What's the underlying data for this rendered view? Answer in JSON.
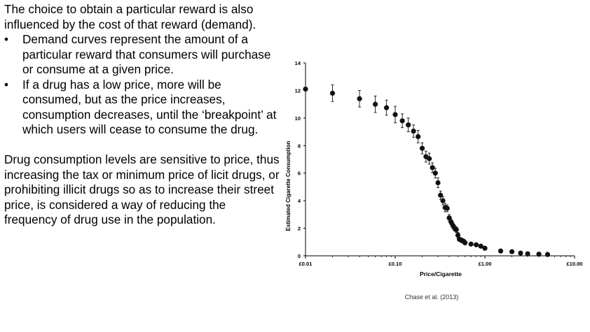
{
  "slide": {
    "intro": "The choice to obtain a particular reward is also influenced by the cost of that reward (demand).",
    "bullets": [
      "Demand curves represent the amount of a particular reward that consumers will purchase or consume at a given price.",
      "If a drug has a low price, more will be consumed, but as the price increases, consumption decreases, until the ‘breakpoint’ at which users will cease to consume the drug."
    ],
    "bullet_glyph": "•",
    "closing": "Drug consumption levels are sensitive to price, thus increasing the tax or minimum price of licit drugs, or prohibiting illicit drugs so as to increase their street price, is considered a way of reducing the frequency of drug use in the population.",
    "citation": "Chase et al. (2013)"
  },
  "chart_data": {
    "type": "scatter",
    "xlabel": "Price/Cigarette",
    "ylabel": "Estimated Cigarette Consumption",
    "x_scale": "log",
    "xlim": [
      0.01,
      10
    ],
    "ylim": [
      0,
      14
    ],
    "x_ticks": [
      0.01,
      0.1,
      1,
      10
    ],
    "x_tick_labels": [
      "£0.01",
      "£0.10",
      "£1.00",
      "£10.00"
    ],
    "y_ticks": [
      0,
      2,
      4,
      6,
      8,
      10,
      12,
      14
    ],
    "y_tick_labels": [
      "0",
      "2",
      "4",
      "6",
      "8",
      "10",
      "12",
      "14"
    ],
    "grid": false,
    "marker_color": "#111111",
    "points": [
      {
        "x": 0.01,
        "y": 12.1,
        "err": 0
      },
      {
        "x": 0.02,
        "y": 11.8,
        "err": 0.6
      },
      {
        "x": 0.04,
        "y": 11.4,
        "err": 0.6
      },
      {
        "x": 0.06,
        "y": 11.0,
        "err": 0.6
      },
      {
        "x": 0.08,
        "y": 10.75,
        "err": 0.55
      },
      {
        "x": 0.1,
        "y": 10.25,
        "err": 0.6
      },
      {
        "x": 0.12,
        "y": 9.8,
        "err": 0.5
      },
      {
        "x": 0.14,
        "y": 9.5,
        "err": 0.5
      },
      {
        "x": 0.16,
        "y": 9.05,
        "err": 0.45
      },
      {
        "x": 0.18,
        "y": 8.65,
        "err": 0.45
      },
      {
        "x": 0.2,
        "y": 7.8,
        "err": 0.4
      },
      {
        "x": 0.22,
        "y": 7.2,
        "err": 0.4
      },
      {
        "x": 0.24,
        "y": 7.05,
        "err": 0.4
      },
      {
        "x": 0.26,
        "y": 6.4,
        "err": 0.35
      },
      {
        "x": 0.28,
        "y": 6.0,
        "err": 0.35
      },
      {
        "x": 0.3,
        "y": 5.3,
        "err": 0.35
      },
      {
        "x": 0.32,
        "y": 4.4,
        "err": 0.3
      },
      {
        "x": 0.34,
        "y": 4.0,
        "err": 0.3
      },
      {
        "x": 0.36,
        "y": 3.5,
        "err": 0.3
      },
      {
        "x": 0.38,
        "y": 3.45,
        "err": 0.25
      },
      {
        "x": 0.4,
        "y": 2.75,
        "err": 0.25
      },
      {
        "x": 0.42,
        "y": 2.45,
        "err": 0.2
      },
      {
        "x": 0.44,
        "y": 2.2,
        "err": 0.2
      },
      {
        "x": 0.46,
        "y": 2.0,
        "err": 0.2
      },
      {
        "x": 0.48,
        "y": 1.9,
        "err": 0.2
      },
      {
        "x": 0.5,
        "y": 1.5,
        "err": 0.2
      },
      {
        "x": 0.52,
        "y": 1.2,
        "err": 0.15
      },
      {
        "x": 0.54,
        "y": 1.15,
        "err": 0.15
      },
      {
        "x": 0.56,
        "y": 1.1,
        "err": 0.15
      },
      {
        "x": 0.58,
        "y": 1.05,
        "err": 0.15
      },
      {
        "x": 0.6,
        "y": 0.95,
        "err": 0.15
      },
      {
        "x": 0.7,
        "y": 0.85,
        "err": 0.12
      },
      {
        "x": 0.8,
        "y": 0.8,
        "err": 0.12
      },
      {
        "x": 0.9,
        "y": 0.7,
        "err": 0.1
      },
      {
        "x": 1.0,
        "y": 0.55,
        "err": 0.1
      },
      {
        "x": 1.5,
        "y": 0.35,
        "err": 0.08
      },
      {
        "x": 2.0,
        "y": 0.3,
        "err": 0.08
      },
      {
        "x": 2.5,
        "y": 0.2,
        "err": 0.05
      },
      {
        "x": 3.0,
        "y": 0.15,
        "err": 0.05
      },
      {
        "x": 4.0,
        "y": 0.12,
        "err": 0.05
      },
      {
        "x": 5.0,
        "y": 0.1,
        "err": 0.05
      }
    ]
  }
}
